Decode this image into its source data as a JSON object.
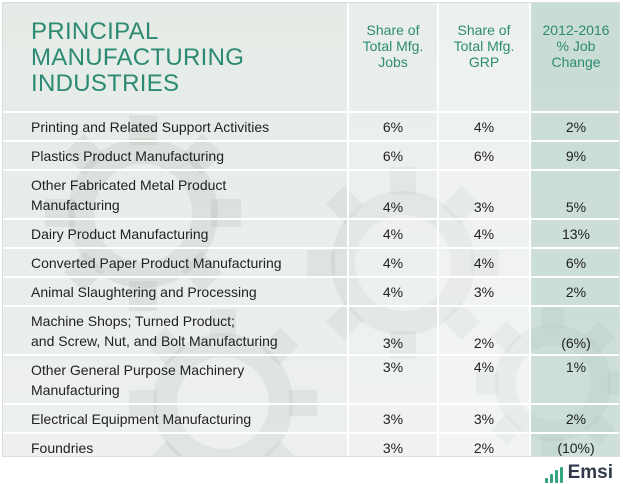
{
  "table": {
    "title_line1": "PRINCIPAL MANUFACTURING",
    "title_line2": "INDUSTRIES",
    "headers": [
      {
        "line1": "Share of",
        "line2": "Total Mfg.",
        "line3": "Jobs"
      },
      {
        "line1": "Share of",
        "line2": "Total Mfg.",
        "line3": "GRP"
      },
      {
        "line1": "2012-2016",
        "line2": "% Job",
        "line3": "Change"
      }
    ],
    "rows": [
      {
        "name_line1": "Printing and Related Support Activities",
        "name_line2": "",
        "jobs": "6%",
        "grp": "4%",
        "change": "2%"
      },
      {
        "name_line1": "Plastics Product Manufacturing",
        "name_line2": "",
        "jobs": "6%",
        "grp": "6%",
        "change": "9%"
      },
      {
        "name_line1": "Other Fabricated Metal Product",
        "name_line2": "Manufacturing",
        "jobs": "4%",
        "grp": "3%",
        "change": "5%"
      },
      {
        "name_line1": "Dairy Product Manufacturing",
        "name_line2": "",
        "jobs": "4%",
        "grp": "4%",
        "change": "13%"
      },
      {
        "name_line1": "Converted Paper Product Manufacturing",
        "name_line2": "",
        "jobs": "4%",
        "grp": "4%",
        "change": "6%"
      },
      {
        "name_line1": "Animal Slaughtering and Processing",
        "name_line2": "",
        "jobs": "4%",
        "grp": "3%",
        "change": "2%"
      },
      {
        "name_line1": "Machine Shops; Turned Product;",
        "name_line2": "and Screw, Nut, and Bolt Manufacturing",
        "jobs": "3%",
        "grp": "2%",
        "change": "(6%)"
      },
      {
        "name_line1": "Other General Purpose Machinery",
        "name_line2": "Manufacturing",
        "jobs": "3%",
        "grp": "4%",
        "change": "1%"
      },
      {
        "name_line1": "Electrical Equipment Manufacturing",
        "name_line2": "",
        "jobs": "3%",
        "grp": "3%",
        "change": "2%"
      },
      {
        "name_line1": "Foundries",
        "name_line2": "",
        "jobs": "3%",
        "grp": "2%",
        "change": "(10%)"
      }
    ]
  },
  "logo": {
    "text": "Emsi",
    "icon": "bar-chart-icon"
  },
  "colors": {
    "title": "#2c8a74",
    "negative": "#c81e1e",
    "logo_green": "#33a582",
    "logo_text": "#2f3a4a"
  }
}
